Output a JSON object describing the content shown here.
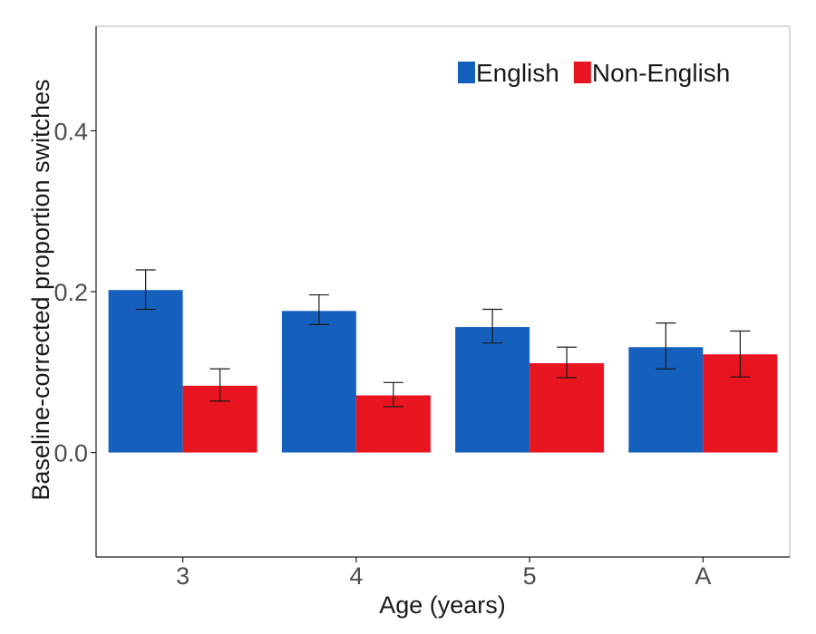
{
  "chart_data": {
    "type": "bar",
    "title": "",
    "xlabel": "Age (years)",
    "ylabel": "Baseline-corrected proportion switches",
    "categories": [
      "3",
      "4",
      "5",
      "A"
    ],
    "ylim": [
      -0.13,
      0.53
    ],
    "yticks": [
      0.0,
      0.2,
      0.4
    ],
    "ytick_labels": [
      "0.0",
      "0.2",
      "0.4"
    ],
    "grid": false,
    "legend_position": "top-right",
    "series": [
      {
        "name": "English",
        "color": "#1560BD",
        "values": [
          0.202,
          0.176,
          0.156,
          0.131
        ],
        "error_low": [
          0.178,
          0.159,
          0.136,
          0.104
        ],
        "error_high": [
          0.227,
          0.196,
          0.178,
          0.161
        ]
      },
      {
        "name": "Non-English",
        "color": "#E8141F",
        "values": [
          0.083,
          0.071,
          0.111,
          0.122
        ],
        "error_low": [
          0.064,
          0.057,
          0.093,
          0.094
        ],
        "error_high": [
          0.104,
          0.087,
          0.131,
          0.151
        ]
      }
    ]
  }
}
